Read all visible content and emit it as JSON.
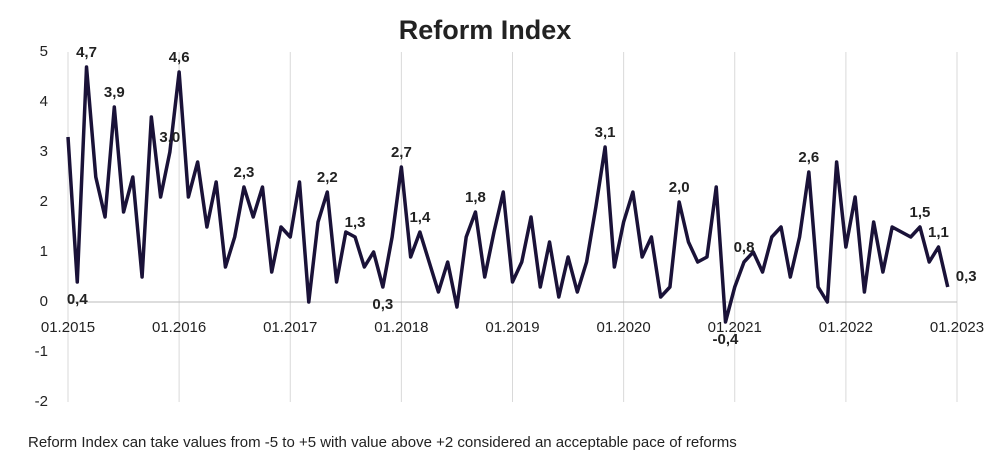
{
  "chart_data": {
    "type": "line",
    "title": "Reform Index",
    "note": "Reform Index can take values from -5 to +5 with value above +2 considered an acceptable pace of reforms",
    "x": [
      "01.2015",
      "02.2015",
      "03.2015",
      "04.2015",
      "05.2015",
      "06.2015",
      "07.2015",
      "08.2015",
      "09.2015",
      "10.2015",
      "11.2015",
      "12.2015",
      "01.2016",
      "02.2016",
      "03.2016",
      "04.2016",
      "05.2016",
      "06.2016",
      "07.2016",
      "08.2016",
      "09.2016",
      "10.2016",
      "11.2016",
      "12.2016",
      "01.2017",
      "02.2017",
      "03.2017",
      "04.2017",
      "05.2017",
      "06.2017",
      "07.2017",
      "08.2017",
      "09.2017",
      "10.2017",
      "11.2017",
      "12.2017",
      "01.2018",
      "02.2018",
      "03.2018",
      "04.2018",
      "05.2018",
      "06.2018",
      "07.2018",
      "08.2018",
      "09.2018",
      "10.2018",
      "11.2018",
      "12.2018",
      "01.2019",
      "02.2019",
      "03.2019",
      "04.2019",
      "05.2019",
      "06.2019",
      "07.2019",
      "08.2019",
      "09.2019",
      "10.2019",
      "11.2019",
      "12.2019",
      "01.2020",
      "02.2020",
      "03.2020",
      "04.2020",
      "05.2020",
      "06.2020",
      "07.2020",
      "08.2020",
      "09.2020",
      "10.2020",
      "11.2020",
      "12.2020",
      "01.2021",
      "02.2021",
      "03.2021",
      "04.2021",
      "05.2021",
      "06.2021",
      "07.2021",
      "08.2021",
      "09.2021",
      "10.2021",
      "11.2021",
      "12.2021",
      "01.2022",
      "02.2022",
      "03.2022",
      "04.2022",
      "05.2022",
      "06.2022",
      "07.2022",
      "08.2022",
      "09.2022",
      "10.2022",
      "11.2022",
      "12.2022"
    ],
    "series": [
      {
        "name": "Reform Index",
        "color": "#1a1238",
        "values": [
          3.3,
          0.4,
          4.7,
          2.5,
          1.7,
          3.9,
          1.8,
          2.5,
          0.5,
          3.7,
          2.1,
          3.0,
          4.6,
          2.1,
          2.8,
          1.5,
          2.4,
          0.7,
          1.3,
          2.3,
          1.7,
          2.3,
          0.6,
          1.5,
          1.3,
          2.4,
          0.0,
          1.6,
          2.2,
          0.4,
          1.4,
          1.3,
          0.7,
          1.0,
          0.3,
          1.3,
          2.7,
          0.9,
          1.4,
          0.8,
          0.2,
          0.8,
          -0.1,
          1.3,
          1.8,
          0.5,
          1.4,
          2.2,
          0.4,
          0.8,
          1.7,
          0.3,
          1.2,
          0.1,
          0.9,
          0.2,
          0.8,
          1.9,
          3.1,
          0.7,
          1.6,
          2.2,
          0.9,
          1.3,
          0.1,
          0.3,
          2.0,
          1.2,
          0.8,
          0.9,
          2.3,
          -0.4,
          0.3,
          0.8,
          1.0,
          0.6,
          1.3,
          1.5,
          0.5,
          1.3,
          2.6,
          0.3,
          0.0,
          2.8,
          1.1,
          2.1,
          0.2,
          1.6,
          0.6,
          1.5,
          1.4,
          1.3,
          1.5,
          0.8,
          1.1,
          0.3
        ],
        "value_labels": [
          null,
          "0,4",
          "4,7",
          null,
          null,
          "3,9",
          null,
          null,
          null,
          null,
          null,
          "3,0",
          "4,6",
          null,
          null,
          null,
          null,
          null,
          null,
          "2,3",
          null,
          null,
          null,
          null,
          null,
          null,
          null,
          null,
          "2,2",
          null,
          null,
          "1,3",
          null,
          null,
          "0,3",
          null,
          "2,7",
          null,
          "1,4",
          null,
          null,
          null,
          null,
          null,
          "1,8",
          null,
          null,
          null,
          null,
          null,
          null,
          null,
          null,
          null,
          null,
          null,
          null,
          null,
          "3,1",
          null,
          null,
          null,
          null,
          null,
          null,
          null,
          "2,0",
          null,
          null,
          null,
          null,
          "-0,4",
          null,
          "0,8",
          null,
          null,
          null,
          null,
          null,
          null,
          "2,6",
          null,
          null,
          null,
          null,
          null,
          null,
          null,
          null,
          null,
          null,
          null,
          "1,5",
          null,
          "1,1",
          "0,3"
        ]
      }
    ],
    "xlim": [
      "01.2015",
      "01.2023"
    ],
    "xticks": [
      "01.2015",
      "01.2016",
      "01.2017",
      "01.2018",
      "01.2019",
      "01.2020",
      "01.2021",
      "01.2022",
      "01.2023"
    ],
    "ylim": [
      -2,
      5
    ],
    "yticks": [
      -2,
      -1,
      0,
      1,
      2,
      3,
      4,
      5
    ],
    "grid": true
  }
}
